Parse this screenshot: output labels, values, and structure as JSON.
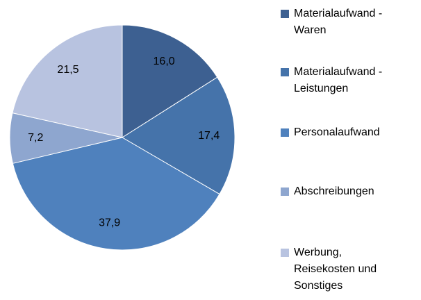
{
  "chart_data": {
    "type": "pie",
    "categories": [
      "Materialaufwand - Waren",
      "Materialaufwand - Leistungen",
      "Personalaufwand",
      "Abschreibungen",
      "Werbung, Reisekosten und Sonstiges"
    ],
    "values": [
      16.0,
      17.4,
      37.9,
      7.2,
      21.5
    ],
    "value_labels": [
      "16,0",
      "17,4",
      "37,9",
      "7,2",
      "21,5"
    ],
    "colors": [
      "#3d6091",
      "#4573aa",
      "#4f81bd",
      "#8ea6cf",
      "#b8c3e0"
    ],
    "legend": "right"
  }
}
